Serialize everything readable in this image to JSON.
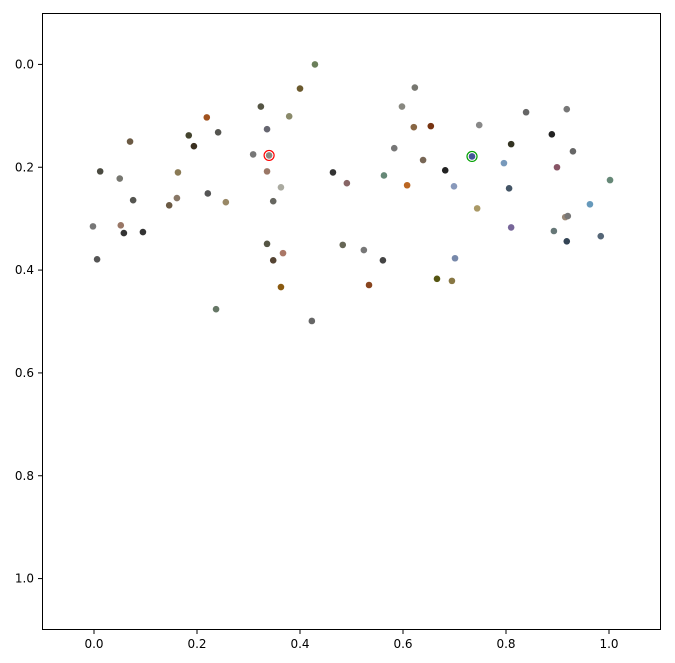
{
  "chart_data": {
    "type": "scatter",
    "title": "",
    "xlabel": "",
    "ylabel": "",
    "xlim": [
      -0.1,
      1.1
    ],
    "ylim": [
      1.1,
      -0.1
    ],
    "y_inverted": true,
    "grid": false,
    "xticks": [
      "0.0",
      "0.2",
      "0.4",
      "0.6",
      "0.8",
      "1.0"
    ],
    "yticks": [
      "0.0",
      "0.2",
      "0.4",
      "0.6",
      "0.8",
      "1.0"
    ],
    "highlighted": [
      {
        "x": 0.34,
        "y": 0.177,
        "ring_color": "#ff0000"
      },
      {
        "x": 0.734,
        "y": 0.179,
        "ring_color": "#00a000"
      }
    ],
    "points": [
      {
        "x": 0.429,
        "y": 0.0,
        "c": "#6b7f5a"
      },
      {
        "x": 0.4,
        "y": 0.047,
        "c": "#6b5a2e"
      },
      {
        "x": 0.324,
        "y": 0.082,
        "c": "#555544"
      },
      {
        "x": 0.379,
        "y": 0.101,
        "c": "#8a8a6a"
      },
      {
        "x": 0.219,
        "y": 0.103,
        "c": "#a0521e"
      },
      {
        "x": 0.07,
        "y": 0.15,
        "c": "#6b5a44"
      },
      {
        "x": 0.184,
        "y": 0.138,
        "c": "#44442e"
      },
      {
        "x": 0.241,
        "y": 0.132,
        "c": "#555550"
      },
      {
        "x": 0.194,
        "y": 0.159,
        "c": "#3a3020"
      },
      {
        "x": 0.336,
        "y": 0.126,
        "c": "#666670"
      },
      {
        "x": 0.34,
        "y": 0.177,
        "c": "#888880"
      },
      {
        "x": 0.309,
        "y": 0.175,
        "c": "#777777"
      },
      {
        "x": 0.012,
        "y": 0.208,
        "c": "#4a4a40"
      },
      {
        "x": 0.163,
        "y": 0.21,
        "c": "#8a7a55"
      },
      {
        "x": 0.05,
        "y": 0.222,
        "c": "#777770"
      },
      {
        "x": 0.336,
        "y": 0.208,
        "c": "#9a7766"
      },
      {
        "x": 0.363,
        "y": 0.239,
        "c": "#aaaaa0"
      },
      {
        "x": 0.221,
        "y": 0.251,
        "c": "#555555"
      },
      {
        "x": 0.076,
        "y": 0.264,
        "c": "#555550"
      },
      {
        "x": 0.161,
        "y": 0.26,
        "c": "#887766"
      },
      {
        "x": 0.256,
        "y": 0.268,
        "c": "#998866"
      },
      {
        "x": 0.146,
        "y": 0.274,
        "c": "#6b5a44"
      },
      {
        "x": 0.348,
        "y": 0.266,
        "c": "#666660"
      },
      {
        "x": -0.002,
        "y": 0.315,
        "c": "#777777"
      },
      {
        "x": 0.052,
        "y": 0.313,
        "c": "#997766"
      },
      {
        "x": 0.058,
        "y": 0.328,
        "c": "#333333"
      },
      {
        "x": 0.095,
        "y": 0.326,
        "c": "#333333"
      },
      {
        "x": 0.006,
        "y": 0.379,
        "c": "#555555"
      },
      {
        "x": 0.336,
        "y": 0.349,
        "c": "#555544"
      },
      {
        "x": 0.367,
        "y": 0.367,
        "c": "#aa7766"
      },
      {
        "x": 0.348,
        "y": 0.381,
        "c": "#554433"
      },
      {
        "x": 0.363,
        "y": 0.433,
        "c": "#8a5a10"
      },
      {
        "x": 0.237,
        "y": 0.476,
        "c": "#667766"
      },
      {
        "x": 0.423,
        "y": 0.499,
        "c": "#666666"
      },
      {
        "x": 0.464,
        "y": 0.21,
        "c": "#333333"
      },
      {
        "x": 0.491,
        "y": 0.231,
        "c": "#886666"
      },
      {
        "x": 0.483,
        "y": 0.351,
        "c": "#666655"
      },
      {
        "x": 0.524,
        "y": 0.361,
        "c": "#777777"
      },
      {
        "x": 0.561,
        "y": 0.381,
        "c": "#444444"
      },
      {
        "x": 0.534,
        "y": 0.429,
        "c": "#88441e"
      },
      {
        "x": 0.563,
        "y": 0.216,
        "c": "#668877"
      },
      {
        "x": 0.583,
        "y": 0.163,
        "c": "#777777"
      },
      {
        "x": 0.598,
        "y": 0.082,
        "c": "#888880"
      },
      {
        "x": 0.623,
        "y": 0.045,
        "c": "#777770"
      },
      {
        "x": 0.621,
        "y": 0.122,
        "c": "#886644"
      },
      {
        "x": 0.654,
        "y": 0.12,
        "c": "#773311"
      },
      {
        "x": 0.639,
        "y": 0.186,
        "c": "#776655"
      },
      {
        "x": 0.608,
        "y": 0.235,
        "c": "#bb6622"
      },
      {
        "x": 0.682,
        "y": 0.206,
        "c": "#222222"
      },
      {
        "x": 0.734,
        "y": 0.179,
        "c": "#445599"
      },
      {
        "x": 0.748,
        "y": 0.118,
        "c": "#888888"
      },
      {
        "x": 0.699,
        "y": 0.237,
        "c": "#8899bb"
      },
      {
        "x": 0.744,
        "y": 0.28,
        "c": "#aa9966"
      },
      {
        "x": 0.701,
        "y": 0.377,
        "c": "#7788aa"
      },
      {
        "x": 0.666,
        "y": 0.417,
        "c": "#555511"
      },
      {
        "x": 0.695,
        "y": 0.421,
        "c": "#887744"
      },
      {
        "x": 0.796,
        "y": 0.192,
        "c": "#7799bb"
      },
      {
        "x": 0.81,
        "y": 0.155,
        "c": "#333322"
      },
      {
        "x": 0.806,
        "y": 0.241,
        "c": "#445566"
      },
      {
        "x": 0.839,
        "y": 0.093,
        "c": "#666666"
      },
      {
        "x": 0.889,
        "y": 0.136,
        "c": "#222222"
      },
      {
        "x": 0.918,
        "y": 0.087,
        "c": "#777777"
      },
      {
        "x": 0.899,
        "y": 0.2,
        "c": "#885566"
      },
      {
        "x": 0.93,
        "y": 0.169,
        "c": "#666666"
      },
      {
        "x": 1.002,
        "y": 0.225,
        "c": "#668877"
      },
      {
        "x": 0.81,
        "y": 0.317,
        "c": "#776699"
      },
      {
        "x": 0.893,
        "y": 0.324,
        "c": "#667777"
      },
      {
        "x": 0.915,
        "y": 0.297,
        "c": "#998877"
      },
      {
        "x": 0.92,
        "y": 0.295,
        "c": "#777777"
      },
      {
        "x": 0.918,
        "y": 0.344,
        "c": "#334455"
      },
      {
        "x": 0.963,
        "y": 0.272,
        "c": "#6699bb"
      },
      {
        "x": 0.984,
        "y": 0.334,
        "c": "#556677"
      }
    ]
  }
}
